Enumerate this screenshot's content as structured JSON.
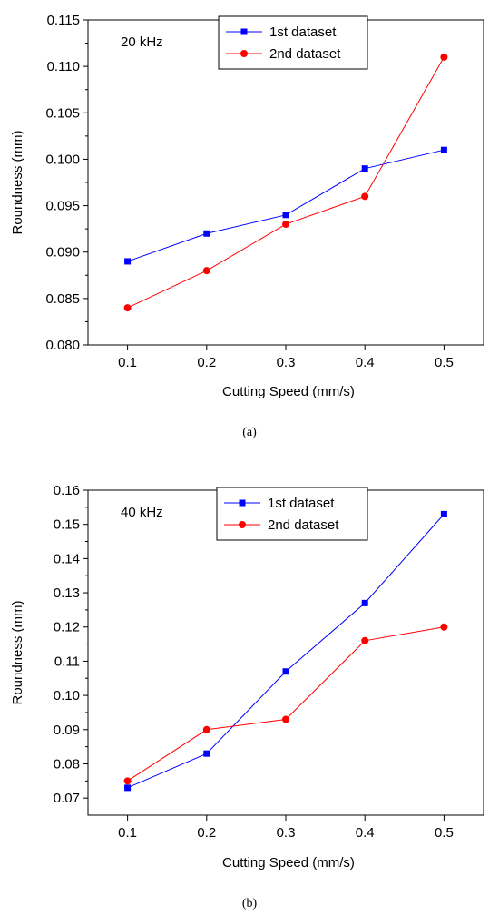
{
  "chart_data": [
    {
      "type": "line",
      "annotation": "20 kHz",
      "caption": "(a)",
      "xlabel": "Cutting Speed (mm/s)",
      "ylabel": "Roundness (mm)",
      "x": [
        0.1,
        0.2,
        0.3,
        0.4,
        0.5
      ],
      "x_tick_labels": [
        "0.1",
        "0.2",
        "0.3",
        "0.4",
        "0.5"
      ],
      "xlim": [
        0.05,
        0.55
      ],
      "ylim": [
        0.08,
        0.115
      ],
      "y_ticks": [
        0.08,
        0.085,
        0.09,
        0.095,
        0.1,
        0.105,
        0.11,
        0.115
      ],
      "y_tick_labels": [
        "0.080",
        "0.085",
        "0.090",
        "0.095",
        "0.100",
        "0.105",
        "0.110",
        "0.115"
      ],
      "grid": false,
      "legend_position": "top-center",
      "series": [
        {
          "name": "1st dataset",
          "color": "#0000ff",
          "marker": "square",
          "values": [
            0.089,
            0.092,
            0.094,
            0.099,
            0.101
          ]
        },
        {
          "name": "2nd dataset",
          "color": "#ff0000",
          "marker": "circle",
          "values": [
            0.084,
            0.088,
            0.093,
            0.096,
            0.111
          ]
        }
      ]
    },
    {
      "type": "line",
      "annotation": "40 kHz",
      "caption": "(b)",
      "xlabel": "Cutting Speed (mm/s)",
      "ylabel": "Roundness (mm)",
      "x": [
        0.1,
        0.2,
        0.3,
        0.4,
        0.5
      ],
      "x_tick_labels": [
        "0.1",
        "0.2",
        "0.3",
        "0.4",
        "0.5"
      ],
      "xlim": [
        0.05,
        0.55
      ],
      "ylim": [
        0.065,
        0.16
      ],
      "y_ticks": [
        0.07,
        0.08,
        0.09,
        0.1,
        0.11,
        0.12,
        0.13,
        0.14,
        0.15,
        0.16
      ],
      "y_tick_labels": [
        "0.07",
        "0.08",
        "0.09",
        "0.10",
        "0.11",
        "0.12",
        "0.13",
        "0.14",
        "0.15",
        "0.16"
      ],
      "grid": false,
      "legend_position": "top-center",
      "series": [
        {
          "name": "1st dataset",
          "color": "#0000ff",
          "marker": "square",
          "values": [
            0.073,
            0.083,
            0.107,
            0.127,
            0.153
          ]
        },
        {
          "name": "2nd dataset",
          "color": "#ff0000",
          "marker": "circle",
          "values": [
            0.075,
            0.09,
            0.093,
            0.116,
            0.12
          ]
        }
      ]
    }
  ]
}
